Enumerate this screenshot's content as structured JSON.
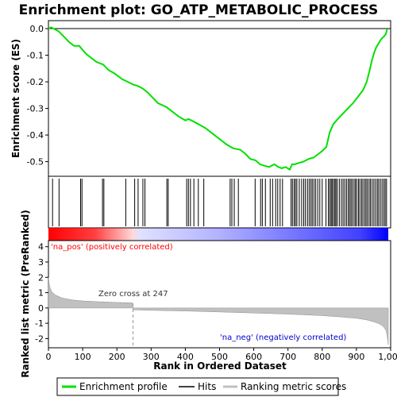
{
  "chart_data": {
    "type": "line",
    "title": "Enrichment plot: GO_ATP_METABOLIC_PROCESS",
    "top_panel": {
      "ylabel": "Enrichment score (ES)",
      "ylim": [
        -0.555,
        0.03
      ],
      "yticks": [
        0.0,
        -0.1,
        -0.2,
        -0.3,
        -0.4,
        -0.5
      ],
      "ytick_labels": [
        "0.0",
        "-0.1",
        "-0.2",
        "-0.3",
        "-0.4",
        "-0.5"
      ],
      "series": [
        {
          "name": "Enrichment profile",
          "color": "#00e000",
          "x": [
            0,
            8,
            15,
            30,
            45,
            60,
            75,
            90,
            100,
            110,
            125,
            140,
            160,
            175,
            195,
            215,
            232,
            247,
            260,
            275,
            290,
            305,
            320,
            345,
            360,
            380,
            400,
            410,
            425,
            440,
            460,
            480,
            500,
            520,
            540,
            560,
            575,
            590,
            605,
            618,
            630,
            645,
            660,
            672,
            682,
            693,
            705,
            712,
            720,
            732,
            745,
            760,
            775,
            790,
            800,
            812,
            822,
            832,
            845,
            860,
            875,
            890,
            905,
            920,
            930,
            938,
            945,
            952,
            958,
            965,
            972,
            980,
            986,
            990
          ],
          "y": [
            0.0,
            0.005,
            0.0,
            -0.01,
            -0.03,
            -0.05,
            -0.065,
            -0.065,
            -0.08,
            -0.095,
            -0.11,
            -0.125,
            -0.135,
            -0.155,
            -0.17,
            -0.19,
            -0.2,
            -0.21,
            -0.215,
            -0.225,
            -0.24,
            -0.26,
            -0.28,
            -0.295,
            -0.31,
            -0.33,
            -0.345,
            -0.34,
            -0.35,
            -0.36,
            -0.375,
            -0.395,
            -0.415,
            -0.435,
            -0.45,
            -0.455,
            -0.47,
            -0.49,
            -0.495,
            -0.51,
            -0.515,
            -0.52,
            -0.51,
            -0.52,
            -0.525,
            -0.52,
            -0.53,
            -0.51,
            -0.51,
            -0.505,
            -0.5,
            -0.49,
            -0.485,
            -0.47,
            -0.46,
            -0.445,
            -0.39,
            -0.36,
            -0.34,
            -0.32,
            -0.3,
            -0.28,
            -0.255,
            -0.23,
            -0.2,
            -0.16,
            -0.12,
            -0.09,
            -0.07,
            -0.055,
            -0.04,
            -0.03,
            -0.02,
            0.0
          ]
        }
      ]
    },
    "hits": {
      "name": "Hits",
      "color": "#000000",
      "positions": [
        12,
        31,
        94,
        98,
        158,
        162,
        226,
        252,
        262,
        276,
        282,
        346,
        350,
        404,
        409,
        415,
        425,
        438,
        454,
        531,
        536,
        543,
        555,
        604,
        620,
        625,
        634,
        648,
        655,
        664,
        670,
        677,
        684,
        709,
        713,
        718,
        722,
        726,
        733,
        740,
        746,
        751,
        757,
        762,
        767,
        771,
        776,
        781,
        787,
        793,
        800,
        811,
        818,
        822,
        826,
        829,
        833,
        837,
        840,
        844,
        850,
        856,
        861,
        866,
        871,
        876,
        880,
        884,
        888,
        893,
        897,
        901,
        906,
        910,
        915,
        919,
        924,
        928,
        932,
        937,
        941,
        946,
        951,
        956,
        961,
        965,
        970,
        975,
        980,
        984,
        988
      ]
    },
    "rank_bar": {
      "x_range": [
        0,
        993
      ],
      "zero_cross_rank": 247,
      "positive_color": "#ff0000",
      "negative_color": "#0000ff"
    },
    "bottom_panel": {
      "name": "Ranking metric scores",
      "color": "#808080",
      "ylabel": "Ranked list metric (PreRanked)",
      "ylim": [
        -2.6,
        4.4
      ],
      "yticks": [
        4,
        3,
        2,
        1,
        0,
        -1,
        -2
      ],
      "ytick_labels": [
        "4",
        "3",
        "2",
        "1",
        "0",
        "-1",
        "-2"
      ],
      "x": [
        0,
        2,
        5,
        10,
        20,
        40,
        70,
        100,
        150,
        200,
        246,
        247,
        248,
        300,
        400,
        500,
        600,
        700,
        800,
        850,
        900,
        930,
        950,
        965,
        975,
        982,
        987,
        990,
        992,
        993
      ],
      "y": [
        2.0,
        1.6,
        1.3,
        1.05,
        0.85,
        0.65,
        0.52,
        0.46,
        0.4,
        0.36,
        0.33,
        0.0,
        -0.12,
        -0.15,
        -0.2,
        -0.26,
        -0.33,
        -0.4,
        -0.5,
        -0.58,
        -0.67,
        -0.78,
        -0.9,
        -1.02,
        -1.15,
        -1.3,
        -1.5,
        -1.85,
        -2.2,
        -2.4
      ]
    },
    "annotations": {
      "pos_label": "'na_pos' (positively correlated)",
      "neg_label": "'na_neg' (negatively correlated)",
      "zero_cross_label": "Zero cross at 247",
      "pos_color": "#ff0000",
      "neg_color": "#0000cc"
    },
    "xaxis": {
      "xlabel": "Rank in Ordered Dataset",
      "xlim": [
        0,
        1000
      ],
      "xticks": [
        0,
        100,
        200,
        300,
        400,
        500,
        600,
        700,
        800,
        900,
        1000
      ],
      "xtick_labels": [
        "0",
        "100",
        "200",
        "300",
        "400",
        "500",
        "600",
        "700",
        "800",
        "900",
        "1,000"
      ]
    },
    "legend": {
      "placement": "bottom",
      "items": [
        {
          "label": "Enrichment profile",
          "color": "#00e000"
        },
        {
          "label": "Hits",
          "color": "#000000"
        },
        {
          "label": "Ranking metric scores",
          "color": "#c0c0c0"
        }
      ]
    }
  }
}
